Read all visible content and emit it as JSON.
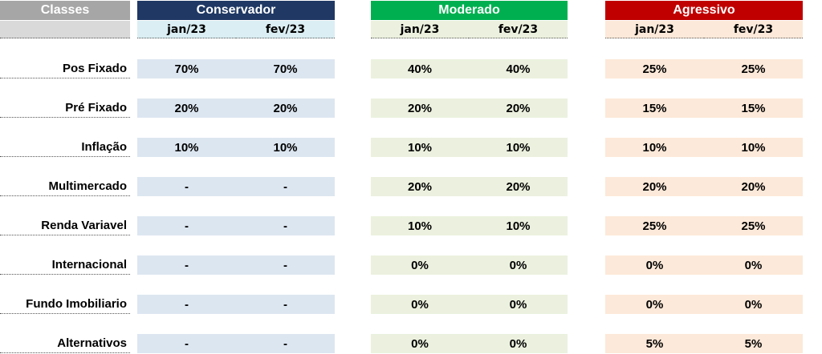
{
  "header": {
    "classes": "Classes",
    "groups": [
      {
        "key": "cons",
        "title": "Conservador",
        "color": "#1f3864"
      },
      {
        "key": "mod",
        "title": "Moderado",
        "color": "#00b050"
      },
      {
        "key": "agr",
        "title": "Agressivo",
        "color": "#c00000"
      }
    ],
    "months": [
      "jan/23",
      "fev/23"
    ]
  },
  "rows": [
    {
      "label": "Pos Fixado",
      "cons": [
        "70%",
        "70%"
      ],
      "mod": [
        "40%",
        "40%"
      ],
      "agr": [
        "25%",
        "25%"
      ]
    },
    {
      "label": "Pré Fixado",
      "cons": [
        "20%",
        "20%"
      ],
      "mod": [
        "20%",
        "20%"
      ],
      "agr": [
        "15%",
        "15%"
      ]
    },
    {
      "label": "Inflação",
      "cons": [
        "10%",
        "10%"
      ],
      "mod": [
        "10%",
        "10%"
      ],
      "agr": [
        "10%",
        "10%"
      ]
    },
    {
      "label": "Multimercado",
      "cons": [
        "-",
        "-"
      ],
      "mod": [
        "20%",
        "20%"
      ],
      "agr": [
        "20%",
        "20%"
      ]
    },
    {
      "label": "Renda Variavel",
      "cons": [
        "-",
        "-"
      ],
      "mod": [
        "10%",
        "10%"
      ],
      "agr": [
        "25%",
        "25%"
      ]
    },
    {
      "label": "Internacional",
      "cons": [
        "-",
        "-"
      ],
      "mod": [
        "0%",
        "0%"
      ],
      "agr": [
        "0%",
        "0%"
      ]
    },
    {
      "label": "Fundo Imobiliario",
      "cons": [
        "-",
        "-"
      ],
      "mod": [
        "0%",
        "0%"
      ],
      "agr": [
        "0%",
        "0%"
      ]
    },
    {
      "label": "Alternativos",
      "cons": [
        "-",
        "-"
      ],
      "mod": [
        "0%",
        "0%"
      ],
      "agr": [
        "5%",
        "5%"
      ]
    }
  ]
}
